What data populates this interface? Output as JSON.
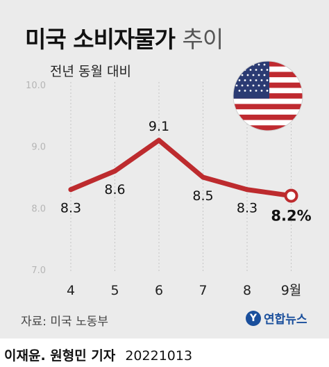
{
  "header": {
    "title_main": "미국 소비자물가",
    "title_light": "추이",
    "subtitle": "전년 동월 대비"
  },
  "chart_data": {
    "type": "line",
    "title": "미국 소비자물가 추이",
    "subtitle": "전년 동월 대비",
    "categories": [
      "4",
      "5",
      "6",
      "7",
      "8",
      "9월"
    ],
    "values": [
      8.3,
      8.6,
      9.1,
      8.5,
      8.3,
      8.2
    ],
    "data_labels": [
      "8.3",
      "8.6",
      "9.1",
      "8.5",
      "8.3",
      "8.2%"
    ],
    "ylim": [
      7.0,
      10.0
    ],
    "yticks": [
      "7.0",
      "8.0",
      "9.0",
      "10.0"
    ],
    "grid": "vertical",
    "line_color": "#bd2b2e",
    "emphasis": "last-point-hollow-marker"
  },
  "source": "자료: 미국 노동부",
  "logo": {
    "mark": "Y",
    "text": "연합뉴스",
    "color": "#1a4f9c"
  },
  "footer": {
    "byline": "이재윤. 원형민 기자",
    "date": "20221013"
  },
  "decor": {
    "flag": "us-flag-icon"
  }
}
